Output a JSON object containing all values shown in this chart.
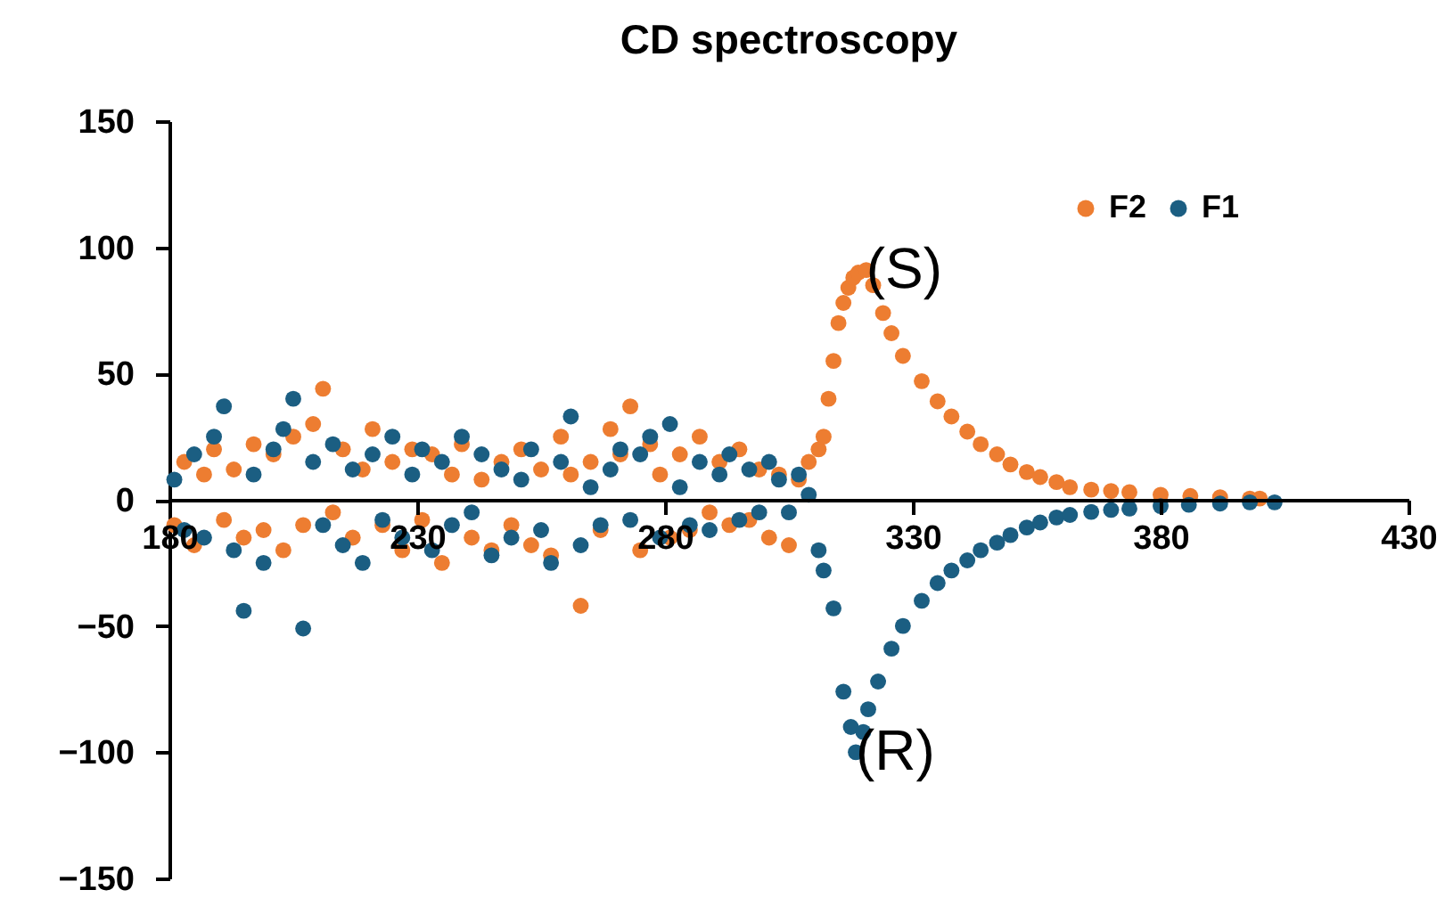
{
  "chart_data": {
    "type": "scatter",
    "title": "CD spectroscopy",
    "xlim": [
      180,
      430
    ],
    "xticks": [
      180,
      230,
      280,
      330,
      380,
      430
    ],
    "ylim": [
      -150,
      150
    ],
    "yticks": [
      -150,
      -100,
      -50,
      0,
      50,
      100,
      150
    ],
    "grid": false,
    "legend": "top right",
    "marker": "circle",
    "annotations": [
      "(S)",
      "(R)"
    ],
    "series": [
      {
        "name": "F2",
        "color": "#ed7d31",
        "x": [
          181,
          183,
          185,
          187,
          189,
          191,
          193,
          195,
          197,
          199,
          201,
          203,
          205,
          207,
          209,
          211,
          213,
          215,
          217,
          219,
          221,
          223,
          225,
          227,
          229,
          231,
          233,
          235,
          237,
          239,
          241,
          243,
          245,
          247,
          249,
          251,
          253,
          255,
          257,
          259,
          261,
          263,
          265,
          267,
          269,
          271,
          273,
          275,
          277,
          279,
          281,
          283,
          285,
          287,
          289,
          291,
          293,
          295,
          297,
          299,
          301,
          303,
          305,
          307,
          309,
          311,
          312,
          313,
          314,
          315,
          316,
          317,
          318,
          319,
          320.6,
          322,
          324,
          325.7,
          328,
          331.8,
          335,
          337.8,
          341,
          343.7,
          347,
          349.7,
          353,
          355.7,
          359,
          361.7,
          366,
          370,
          373.7,
          380,
          386,
          392,
          398,
          400
        ],
        "values": [
          -10,
          15,
          -18,
          10,
          20,
          -8,
          12,
          -15,
          22,
          -12,
          18,
          -20,
          25,
          -10,
          30,
          44,
          -5,
          20,
          -15,
          12,
          28,
          -10,
          15,
          -20,
          20,
          -8,
          18,
          -25,
          10,
          22,
          -15,
          8,
          -20,
          15,
          -10,
          20,
          -18,
          12,
          -22,
          25,
          10,
          -42,
          15,
          -12,
          28,
          18,
          37,
          -20,
          22,
          10,
          -15,
          18,
          -12,
          25,
          -5,
          15,
          -10,
          20,
          -8,
          12,
          -15,
          10,
          -18,
          8,
          15,
          20,
          25,
          40,
          55,
          70,
          78,
          84,
          88,
          90,
          91,
          85,
          74,
          66,
          57,
          47,
          39,
          33,
          27,
          22,
          18,
          14,
          11,
          9,
          7,
          5,
          4,
          3.5,
          3,
          2,
          1.5,
          1,
          0.5,
          0.5
        ]
      },
      {
        "name": "F1",
        "color": "#1b5e82",
        "x": [
          181,
          183,
          185,
          187,
          189,
          191,
          193,
          195,
          197,
          199,
          201,
          203,
          205,
          207,
          209,
          211,
          213,
          215,
          217,
          219,
          221,
          223,
          225,
          227,
          229,
          231,
          233,
          235,
          237,
          239,
          241,
          243,
          245,
          247,
          249,
          251,
          253,
          255,
          257,
          259,
          261,
          263,
          265,
          267,
          269,
          271,
          273,
          275,
          277,
          279,
          281,
          283,
          285,
          287,
          289,
          291,
          293,
          295,
          297,
          299,
          301,
          303,
          305,
          307,
          309,
          311,
          312,
          314,
          316,
          317.5,
          318.5,
          320,
          321,
          323,
          325.7,
          328,
          331.8,
          335,
          337.8,
          341,
          343.7,
          347,
          349.7,
          353,
          355.7,
          359,
          361.7,
          366,
          370,
          373.7,
          380,
          385.7,
          392,
          398,
          403
        ],
        "values": [
          8,
          -12,
          18,
          -15,
          25,
          37,
          -20,
          -44,
          10,
          -25,
          20,
          28,
          40,
          -51,
          15,
          -10,
          22,
          -18,
          12,
          -25,
          18,
          -8,
          25,
          -15,
          10,
          20,
          -20,
          15,
          -10,
          25,
          -5,
          18,
          -22,
          12,
          -15,
          8,
          20,
          -12,
          -25,
          15,
          33,
          -18,
          5,
          -10,
          12,
          20,
          -8,
          18,
          25,
          -15,
          30,
          5,
          -10,
          15,
          -12,
          10,
          18,
          -8,
          12,
          -5,
          15,
          8,
          -5,
          10,
          2,
          -20,
          -28,
          -43,
          -76,
          -90,
          -100,
          -92,
          -83,
          -72,
          -59,
          -50,
          -40,
          -33,
          -28,
          -24,
          -20,
          -17,
          -14,
          -11,
          -9,
          -7,
          -6,
          -4.8,
          -4,
          -3.5,
          -2.5,
          -2,
          -1.5,
          -1,
          -1
        ]
      }
    ]
  }
}
